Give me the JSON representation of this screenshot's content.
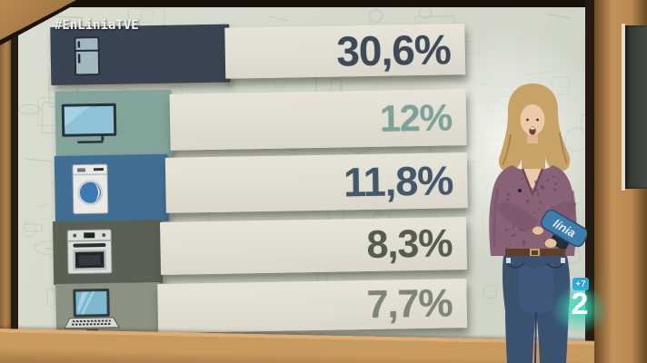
{
  "header": {
    "hashtag": "#EnLiniaTVE"
  },
  "chart_data": {
    "type": "bar",
    "orientation": "horizontal",
    "title": "",
    "categories": [
      "refrigerator",
      "television",
      "washing-machine",
      "oven",
      "laptop"
    ],
    "values": [
      30.6,
      12,
      11.8,
      8.3,
      7.7
    ],
    "value_labels": [
      "30,6%",
      "12%",
      "11,8%",
      "8,3%",
      "7,7%"
    ],
    "unit": "%",
    "decimal_separator": ",",
    "grid": false,
    "legend_position": "none",
    "bars": [
      {
        "icon": "refrigerator-icon",
        "value": 30.6,
        "value_label": "30,6%",
        "bar_color": "#3b4453",
        "text_color": "#3f4a57"
      },
      {
        "icon": "television-icon",
        "value": 12,
        "value_label": "12%",
        "bar_color": "#82a49b",
        "text_color": "#7ba399"
      },
      {
        "icon": "washing-machine-icon",
        "value": 11.8,
        "value_label": "11,8%",
        "bar_color": "#416f92",
        "text_color": "#44586b"
      },
      {
        "icon": "oven-icon",
        "value": 8.3,
        "value_label": "8,3%",
        "bar_color": "#5b6054",
        "text_color": "#575c50"
      },
      {
        "icon": "laptop-icon",
        "value": 7.7,
        "value_label": "7,7%",
        "bar_color": "#8b9282",
        "text_color": "#7f8577"
      }
    ],
    "plate_color": "#e2dfd3"
  },
  "channel": {
    "badge_label": "+7",
    "logo_label": "2",
    "badge_color": "#2ba7e2",
    "glow_color": "#3fd9bb"
  },
  "presenter": {
    "device_label": "línia"
  },
  "colors": {
    "wall": "#d6dacd",
    "doodle": "#b8c1b0",
    "wood_frame": "#b3854e",
    "wood_desk": "#c79a5e",
    "bezel": "#241c14",
    "hashtag_text": "#f2f2ee"
  }
}
